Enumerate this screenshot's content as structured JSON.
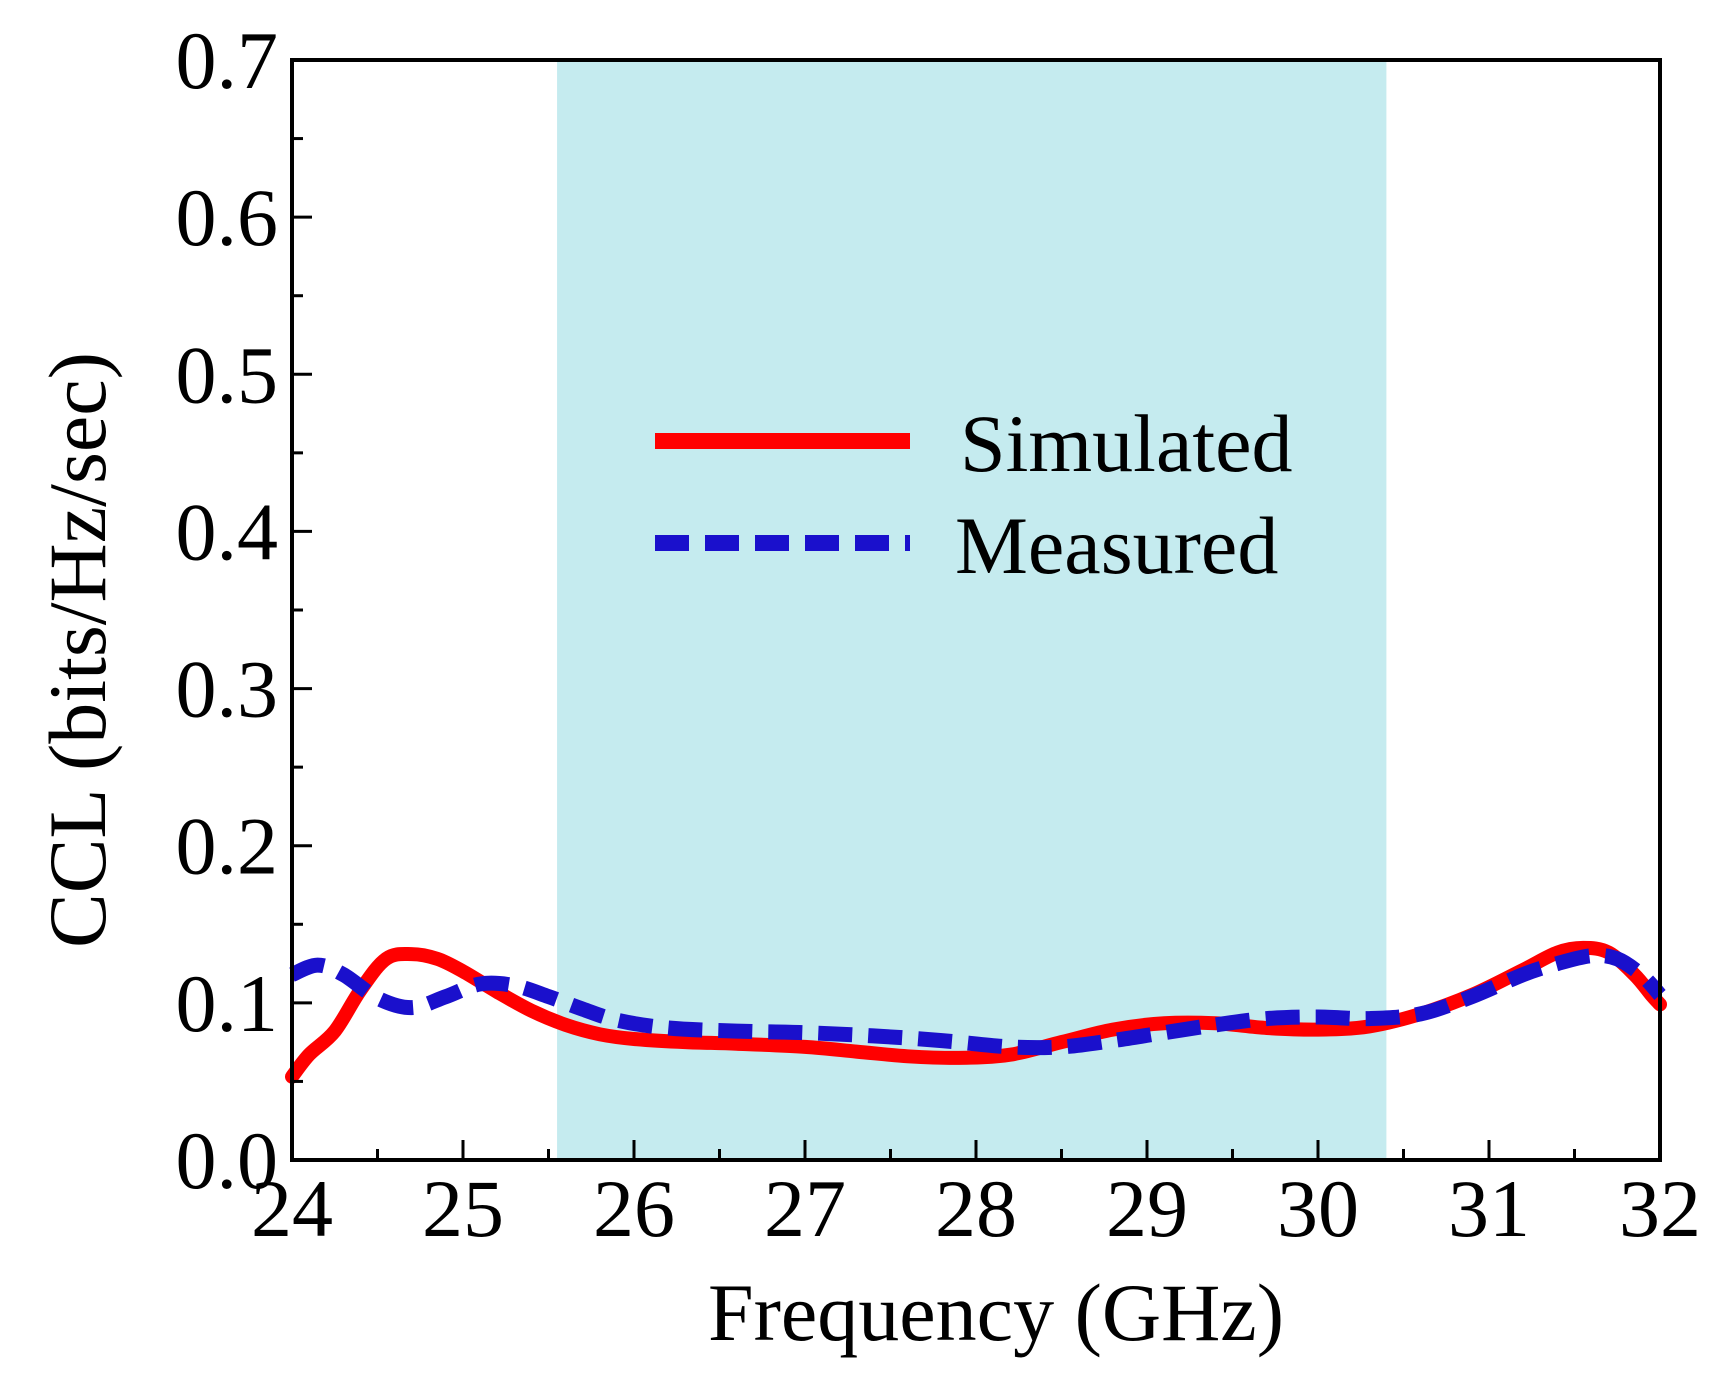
{
  "chart_data": {
    "type": "line",
    "title": "",
    "xlabel": "Frequency (GHz)",
    "ylabel": "CCL (bits/Hz/sec)",
    "xlim": [
      24,
      32
    ],
    "ylim": [
      0.0,
      0.7
    ],
    "xticks": [
      24,
      25,
      26,
      27,
      28,
      29,
      30,
      31,
      32
    ],
    "xtick_labels": [
      "24",
      "25",
      "26",
      "27",
      "28",
      "29",
      "30",
      "31",
      "32"
    ],
    "yticks": [
      0.0,
      0.1,
      0.2,
      0.3,
      0.4,
      0.5,
      0.6,
      0.7
    ],
    "ytick_labels": [
      "0.0",
      "0.1",
      "0.2",
      "0.3",
      "0.4",
      "0.5",
      "0.6",
      "0.7"
    ],
    "grid": false,
    "legend_position": "center",
    "highlight_band": {
      "x_range": [
        25.55,
        30.4
      ],
      "color": "#c5ebef"
    },
    "series": [
      {
        "name": "Simulated",
        "style": "solid",
        "color": "#ff0000",
        "x": [
          24.0,
          24.1,
          24.25,
          24.4,
          24.55,
          24.7,
          24.85,
          25.0,
          25.2,
          25.4,
          25.6,
          25.8,
          26.0,
          26.3,
          26.6,
          27.0,
          27.3,
          27.6,
          27.9,
          28.2,
          28.5,
          28.8,
          29.1,
          29.4,
          29.7,
          30.0,
          30.3,
          30.6,
          30.9,
          31.2,
          31.4,
          31.55,
          31.7,
          31.85,
          31.95,
          32.0
        ],
        "y": [
          0.053,
          0.067,
          0.082,
          0.108,
          0.128,
          0.131,
          0.128,
          0.12,
          0.107,
          0.095,
          0.086,
          0.08,
          0.077,
          0.075,
          0.074,
          0.072,
          0.069,
          0.066,
          0.065,
          0.067,
          0.075,
          0.083,
          0.087,
          0.087,
          0.084,
          0.083,
          0.085,
          0.093,
          0.105,
          0.121,
          0.132,
          0.135,
          0.132,
          0.118,
          0.105,
          0.099
        ]
      },
      {
        "name": "Measured",
        "style": "dashed",
        "color": "#1a10cc",
        "x": [
          24.0,
          24.15,
          24.3,
          24.5,
          24.7,
          24.9,
          25.1,
          25.3,
          25.5,
          25.7,
          25.9,
          26.2,
          26.6,
          27.0,
          27.4,
          27.8,
          28.2,
          28.5,
          28.8,
          29.1,
          29.4,
          29.7,
          30.0,
          30.3,
          30.6,
          30.9,
          31.2,
          31.4,
          31.6,
          31.75,
          31.9,
          32.0
        ],
        "y": [
          0.118,
          0.124,
          0.118,
          0.103,
          0.097,
          0.104,
          0.112,
          0.111,
          0.104,
          0.096,
          0.089,
          0.084,
          0.082,
          0.081,
          0.079,
          0.076,
          0.072,
          0.072,
          0.076,
          0.081,
          0.086,
          0.09,
          0.091,
          0.09,
          0.093,
          0.104,
          0.118,
          0.125,
          0.13,
          0.128,
          0.117,
          0.105
        ]
      }
    ]
  }
}
